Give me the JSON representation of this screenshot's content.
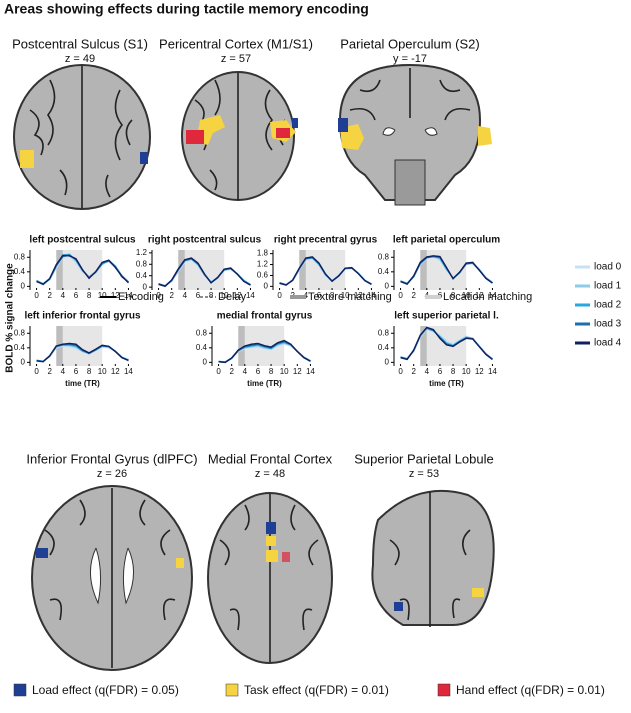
{
  "title": "Areas showing effects during tactile memory encoding",
  "brain_images": [
    {
      "name": "Postcentral Sulcus (S1)",
      "coord": "z = 49"
    },
    {
      "name": "Pericentral Cortex (M1/S1)",
      "coord": "z = 57"
    },
    {
      "name": "Parietal Operculum (S2)",
      "coord": "y = -17"
    },
    {
      "name": "Inferior Frontal Gyrus (dlPFC)",
      "coord": "z = 26"
    },
    {
      "name": "Medial Frontal Cortex",
      "coord": "z = 48"
    },
    {
      "name": "Superior Parietal Lobule",
      "coord": "z = 53"
    }
  ],
  "y_axis_label": "BOLD % signal change",
  "event_legend": [
    "Encoding",
    "Delay",
    "Texture matching",
    "Location matching"
  ],
  "effect_legend": [
    {
      "label": "Load effect (q(FDR) = 0.05)",
      "color": "#1f3f94"
    },
    {
      "label": "Task effect (q(FDR) = 0.01)",
      "color": "#f5d341"
    },
    {
      "label": "Hand effect (q(FDR) = 0.01)",
      "color": "#e0283c"
    }
  ],
  "chart_data": [
    {
      "type": "line",
      "title": "left postcentral sulcus",
      "x": [
        0,
        1,
        2,
        3,
        4,
        5,
        6,
        7,
        8,
        9,
        10,
        11,
        12,
        13,
        14
      ],
      "xlim": [
        -1,
        15
      ],
      "xticks": [
        0,
        2,
        4,
        6,
        8,
        10,
        12,
        14
      ],
      "ylim": [
        -0.1,
        1.0
      ],
      "yticks": [
        0,
        0.4,
        0.8
      ],
      "series": [
        {
          "name": "load 0",
          "color": "#c6e2f5",
          "values": [
            0.15,
            0.08,
            0.18,
            0.5,
            0.8,
            0.82,
            0.65,
            0.4,
            0.28,
            0.42,
            0.62,
            0.68,
            0.52,
            0.3,
            0.15
          ]
        },
        {
          "name": "load 1",
          "color": "#8ccbea",
          "values": [
            0.14,
            0.06,
            0.2,
            0.55,
            0.84,
            0.85,
            0.7,
            0.42,
            0.26,
            0.4,
            0.6,
            0.7,
            0.55,
            0.3,
            0.12
          ]
        },
        {
          "name": "load 2",
          "color": "#2aa7dc",
          "values": [
            0.16,
            0.07,
            0.22,
            0.58,
            0.86,
            0.88,
            0.72,
            0.45,
            0.25,
            0.38,
            0.62,
            0.72,
            0.56,
            0.28,
            0.1
          ]
        },
        {
          "name": "load 3",
          "color": "#1b6fae",
          "values": [
            0.15,
            0.05,
            0.2,
            0.56,
            0.82,
            0.86,
            0.74,
            0.44,
            0.24,
            0.4,
            0.64,
            0.7,
            0.54,
            0.26,
            0.12
          ]
        },
        {
          "name": "load 4",
          "color": "#12205e",
          "values": [
            0.13,
            0.06,
            0.21,
            0.6,
            0.85,
            0.84,
            0.76,
            0.46,
            0.22,
            0.4,
            0.66,
            0.72,
            0.52,
            0.28,
            0.1
          ]
        }
      ]
    },
    {
      "type": "line",
      "title": "right postcentral sulcus",
      "x": [
        0,
        1,
        2,
        3,
        4,
        5,
        6,
        7,
        8,
        9,
        10,
        11,
        12,
        13,
        14
      ],
      "xlim": [
        -1,
        15
      ],
      "xticks": [
        0,
        2,
        4,
        6,
        8,
        10,
        12,
        14
      ],
      "ylim": [
        -0.1,
        1.3
      ],
      "yticks": [
        0,
        0.4,
        0.8,
        1.2
      ],
      "series": [
        {
          "color": "#c6e2f5",
          "values": [
            0.12,
            0.05,
            0.2,
            0.55,
            0.88,
            0.95,
            0.75,
            0.4,
            0.2,
            0.35,
            0.58,
            0.62,
            0.45,
            0.25,
            0.1
          ]
        },
        {
          "color": "#8ccbea",
          "values": [
            0.1,
            0.04,
            0.22,
            0.6,
            0.92,
            0.98,
            0.78,
            0.42,
            0.18,
            0.34,
            0.6,
            0.64,
            0.46,
            0.22,
            0.08
          ]
        },
        {
          "color": "#2aa7dc",
          "values": [
            0.11,
            0.05,
            0.24,
            0.62,
            0.95,
            1.0,
            0.8,
            0.44,
            0.17,
            0.33,
            0.6,
            0.66,
            0.47,
            0.23,
            0.09
          ]
        },
        {
          "color": "#1b6fae",
          "values": [
            0.12,
            0.04,
            0.23,
            0.6,
            0.93,
            0.99,
            0.82,
            0.45,
            0.16,
            0.32,
            0.62,
            0.65,
            0.46,
            0.21,
            0.08
          ]
        },
        {
          "color": "#12205e",
          "values": [
            0.1,
            0.03,
            0.25,
            0.64,
            0.96,
            1.02,
            0.84,
            0.46,
            0.15,
            0.34,
            0.63,
            0.67,
            0.45,
            0.2,
            0.07
          ]
        }
      ]
    },
    {
      "type": "line",
      "title": "right precentral gyrus",
      "x": [
        0,
        1,
        2,
        3,
        4,
        5,
        6,
        7,
        8,
        9,
        10,
        11,
        12,
        13,
        14
      ],
      "xlim": [
        -1,
        15
      ],
      "xticks": [
        0,
        2,
        4,
        6,
        8,
        10,
        12,
        14
      ],
      "ylim": [
        -0.2,
        2.0
      ],
      "yticks": [
        0,
        0.6,
        1.2,
        1.8
      ],
      "series": [
        {
          "color": "#c6e2f5",
          "values": [
            0.2,
            0.1,
            0.3,
            0.9,
            1.45,
            1.5,
            1.15,
            0.6,
            0.35,
            0.6,
            0.95,
            0.98,
            0.7,
            0.35,
            0.15
          ]
        },
        {
          "color": "#8ccbea",
          "values": [
            0.18,
            0.08,
            0.32,
            0.95,
            1.5,
            1.55,
            1.2,
            0.62,
            0.32,
            0.58,
            0.96,
            1.0,
            0.72,
            0.34,
            0.13
          ]
        },
        {
          "color": "#2aa7dc",
          "values": [
            0.2,
            0.09,
            0.34,
            0.98,
            1.55,
            1.6,
            1.22,
            0.64,
            0.3,
            0.57,
            0.98,
            1.02,
            0.73,
            0.33,
            0.12
          ]
        },
        {
          "color": "#1b6fae",
          "values": [
            0.19,
            0.08,
            0.33,
            0.96,
            1.52,
            1.58,
            1.25,
            0.66,
            0.29,
            0.56,
            0.99,
            1.01,
            0.71,
            0.32,
            0.12
          ]
        },
        {
          "color": "#12205e",
          "values": [
            0.17,
            0.07,
            0.35,
            1.0,
            1.56,
            1.62,
            1.28,
            0.68,
            0.28,
            0.58,
            1.0,
            1.03,
            0.7,
            0.31,
            0.11
          ]
        }
      ]
    },
    {
      "type": "line",
      "title": "left parietal operculum",
      "x": [
        0,
        1,
        2,
        3,
        4,
        5,
        6,
        7,
        8,
        9,
        10,
        11,
        12,
        13,
        14
      ],
      "xlim": [
        -1,
        15
      ],
      "xticks": [
        0,
        2,
        4,
        6,
        8,
        10,
        12,
        14
      ],
      "ylim": [
        -0.1,
        1.0
      ],
      "yticks": [
        0,
        0.4,
        0.8
      ],
      "series": [
        {
          "color": "#c6e2f5",
          "values": [
            0.15,
            0.08,
            0.25,
            0.6,
            0.78,
            0.8,
            0.72,
            0.45,
            0.25,
            0.4,
            0.6,
            0.62,
            0.45,
            0.25,
            0.12
          ]
        },
        {
          "color": "#8ccbea",
          "values": [
            0.14,
            0.07,
            0.27,
            0.62,
            0.8,
            0.82,
            0.75,
            0.46,
            0.23,
            0.38,
            0.62,
            0.64,
            0.46,
            0.24,
            0.1
          ]
        },
        {
          "color": "#2aa7dc",
          "values": [
            0.15,
            0.08,
            0.28,
            0.64,
            0.8,
            0.83,
            0.78,
            0.48,
            0.22,
            0.37,
            0.63,
            0.65,
            0.46,
            0.23,
            0.1
          ]
        },
        {
          "color": "#1b6fae",
          "values": [
            0.14,
            0.07,
            0.27,
            0.63,
            0.79,
            0.82,
            0.8,
            0.5,
            0.22,
            0.38,
            0.62,
            0.64,
            0.45,
            0.22,
            0.09
          ]
        },
        {
          "color": "#12205e",
          "values": [
            0.13,
            0.06,
            0.29,
            0.66,
            0.81,
            0.84,
            0.82,
            0.52,
            0.21,
            0.39,
            0.64,
            0.66,
            0.44,
            0.22,
            0.09
          ]
        }
      ]
    },
    {
      "type": "line",
      "title": "left inferior frontal gyrus",
      "x_label": "time (TR)",
      "x": [
        0,
        1,
        2,
        3,
        4,
        5,
        6,
        7,
        8,
        9,
        10,
        11,
        12,
        13,
        14
      ],
      "xlim": [
        -1,
        15
      ],
      "xticks": [
        0,
        2,
        4,
        6,
        8,
        10,
        12,
        14
      ],
      "ylim": [
        -0.1,
        1.0
      ],
      "yticks": [
        0,
        0.4,
        0.8
      ],
      "series": [
        {
          "color": "#c6e2f5",
          "values": [
            0.05,
            0.03,
            0.15,
            0.4,
            0.45,
            0.42,
            0.38,
            0.3,
            0.25,
            0.32,
            0.42,
            0.4,
            0.3,
            0.15,
            0.08
          ]
        },
        {
          "color": "#8ccbea",
          "values": [
            0.05,
            0.02,
            0.17,
            0.42,
            0.47,
            0.46,
            0.42,
            0.3,
            0.24,
            0.33,
            0.44,
            0.42,
            0.3,
            0.14,
            0.07
          ]
        },
        {
          "color": "#2aa7dc",
          "values": [
            0.06,
            0.03,
            0.18,
            0.43,
            0.48,
            0.48,
            0.45,
            0.32,
            0.24,
            0.34,
            0.45,
            0.43,
            0.31,
            0.14,
            0.06
          ]
        },
        {
          "color": "#1b6fae",
          "values": [
            0.05,
            0.02,
            0.17,
            0.44,
            0.49,
            0.5,
            0.47,
            0.33,
            0.25,
            0.35,
            0.46,
            0.44,
            0.3,
            0.13,
            0.06
          ]
        },
        {
          "color": "#12205e",
          "values": [
            0.04,
            0.02,
            0.18,
            0.45,
            0.5,
            0.52,
            0.5,
            0.35,
            0.26,
            0.36,
            0.47,
            0.44,
            0.3,
            0.13,
            0.05
          ]
        }
      ]
    },
    {
      "type": "line",
      "title": "medial frontal gyrus",
      "x_label": "time (TR)",
      "x": [
        0,
        1,
        2,
        3,
        4,
        5,
        6,
        7,
        8,
        9,
        10,
        11,
        12,
        13,
        14
      ],
      "xlim": [
        -1,
        15
      ],
      "xticks": [
        0,
        2,
        4,
        6,
        8,
        10,
        12,
        14
      ],
      "ylim": [
        -0.1,
        1.0
      ],
      "yticks": [
        0,
        0.4,
        0.8
      ],
      "series": [
        {
          "color": "#c6e2f5",
          "values": [
            0.02,
            0.0,
            0.1,
            0.3,
            0.38,
            0.4,
            0.42,
            0.38,
            0.35,
            0.45,
            0.5,
            0.45,
            0.3,
            0.15,
            0.05
          ]
        },
        {
          "color": "#8ccbea",
          "values": [
            0.02,
            0.0,
            0.12,
            0.32,
            0.4,
            0.43,
            0.45,
            0.4,
            0.37,
            0.48,
            0.53,
            0.47,
            0.3,
            0.14,
            0.04
          ]
        },
        {
          "color": "#2aa7dc",
          "values": [
            0.03,
            0.01,
            0.12,
            0.33,
            0.42,
            0.45,
            0.48,
            0.42,
            0.38,
            0.5,
            0.55,
            0.48,
            0.31,
            0.14,
            0.04
          ]
        },
        {
          "color": "#1b6fae",
          "values": [
            0.02,
            0.0,
            0.11,
            0.32,
            0.43,
            0.47,
            0.5,
            0.44,
            0.4,
            0.52,
            0.57,
            0.49,
            0.3,
            0.13,
            0.03
          ]
        },
        {
          "color": "#12205e",
          "values": [
            0.02,
            0.0,
            0.12,
            0.34,
            0.45,
            0.5,
            0.52,
            0.46,
            0.42,
            0.54,
            0.6,
            0.5,
            0.3,
            0.13,
            0.03
          ]
        }
      ]
    },
    {
      "type": "line",
      "title": "left superior parietal l.",
      "x_label": "time (TR)",
      "x": [
        0,
        1,
        2,
        3,
        4,
        5,
        6,
        7,
        8,
        9,
        10,
        11,
        12,
        13,
        14
      ],
      "xlim": [
        -1,
        15
      ],
      "xticks": [
        0,
        2,
        4,
        6,
        8,
        10,
        12,
        14
      ],
      "ylim": [
        -0.1,
        1.0
      ],
      "yticks": [
        0,
        0.4,
        0.8
      ],
      "series": [
        {
          "color": "#c6e2f5",
          "values": [
            0.15,
            0.1,
            0.3,
            0.7,
            0.9,
            0.85,
            0.75,
            0.6,
            0.5,
            0.62,
            0.72,
            0.65,
            0.45,
            0.25,
            0.1
          ]
        },
        {
          "color": "#8ccbea",
          "values": [
            0.14,
            0.09,
            0.32,
            0.72,
            0.92,
            0.86,
            0.72,
            0.55,
            0.48,
            0.6,
            0.7,
            0.66,
            0.44,
            0.24,
            0.09
          ]
        },
        {
          "color": "#2aa7dc",
          "values": [
            0.15,
            0.1,
            0.33,
            0.74,
            0.94,
            0.87,
            0.7,
            0.52,
            0.46,
            0.58,
            0.68,
            0.66,
            0.44,
            0.23,
            0.09
          ]
        },
        {
          "color": "#1b6fae",
          "values": [
            0.14,
            0.09,
            0.32,
            0.73,
            0.95,
            0.88,
            0.68,
            0.5,
            0.45,
            0.57,
            0.67,
            0.65,
            0.43,
            0.22,
            0.08
          ]
        },
        {
          "color": "#12205e",
          "values": [
            0.13,
            0.08,
            0.34,
            0.75,
            0.96,
            0.9,
            0.66,
            0.48,
            0.44,
            0.56,
            0.66,
            0.64,
            0.43,
            0.22,
            0.08
          ]
        }
      ]
    }
  ]
}
